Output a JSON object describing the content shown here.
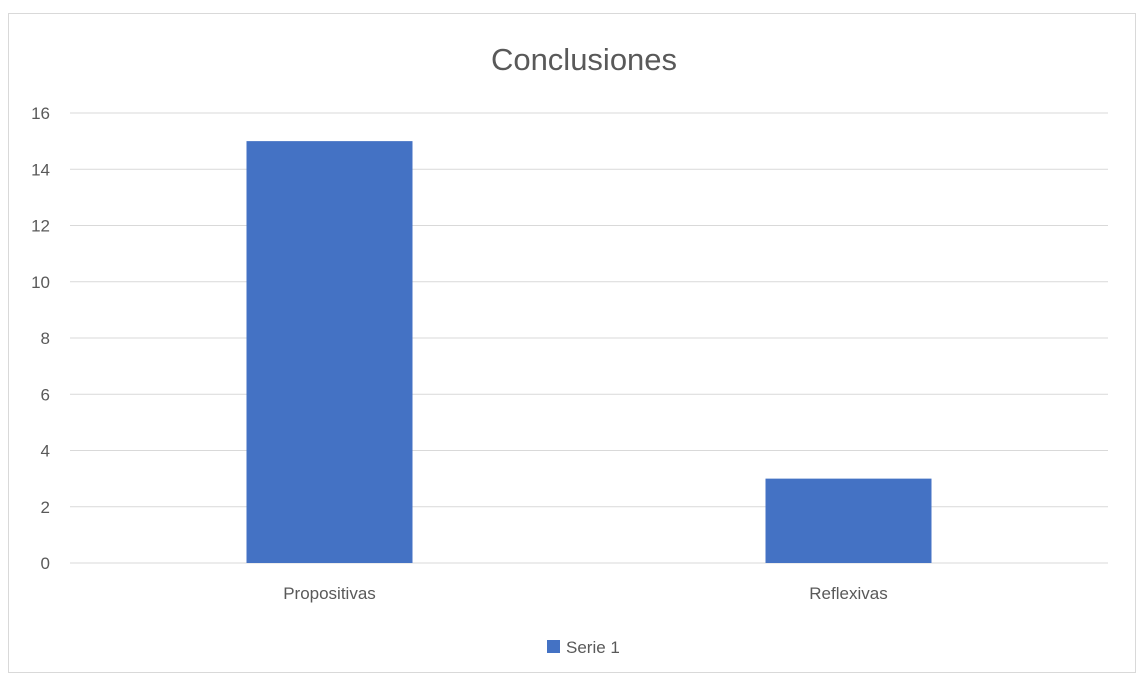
{
  "chart_data": {
    "type": "bar",
    "title": "Conclusiones",
    "categories": [
      "Propositivas",
      "Reflexivas"
    ],
    "series": [
      {
        "name": "Serie 1",
        "values": [
          15,
          3
        ]
      }
    ],
    "ylim": [
      0,
      16
    ],
    "yticks": [
      0,
      2,
      4,
      6,
      8,
      10,
      12,
      14,
      16
    ],
    "grid": true,
    "legend": "bottom",
    "colors": {
      "series": "#4472C4",
      "grid": "#D9D9D9",
      "text": "#595959"
    }
  }
}
